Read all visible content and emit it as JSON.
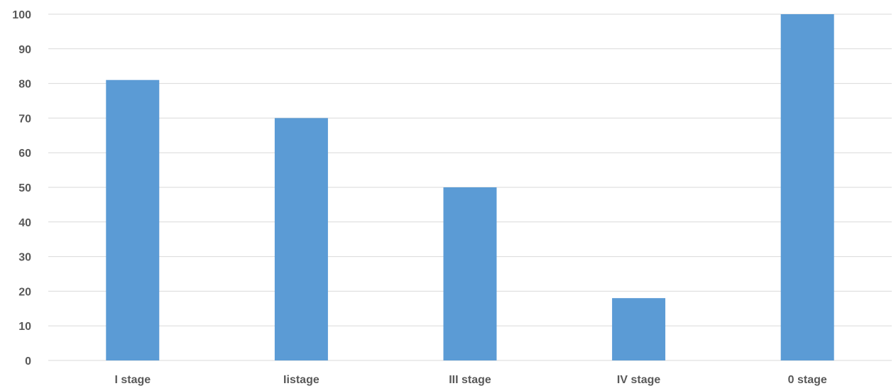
{
  "chart_data": {
    "type": "bar",
    "title": "",
    "xlabel": "",
    "ylabel": "",
    "categories": [
      "I stage",
      "Iistage",
      "III stage",
      "IV stage",
      "0 stage"
    ],
    "values": [
      81,
      70,
      50,
      18,
      100
    ],
    "ylim": [
      0,
      100
    ],
    "yticks": [
      "0",
      "10",
      "20",
      "30",
      "40",
      "50",
      "60",
      "70",
      "80",
      "90",
      "100"
    ],
    "grid": true,
    "legend": "none",
    "bar_color": "#5b9bd5"
  }
}
